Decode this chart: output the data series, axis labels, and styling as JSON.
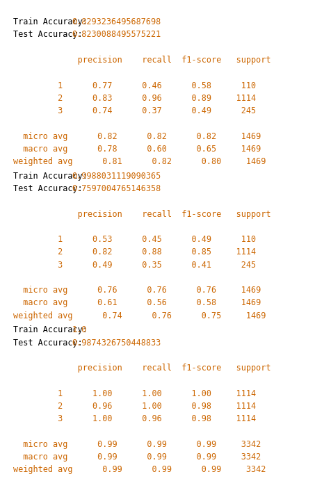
{
  "panels": [
    {
      "train_acc": "0.8293236495687698",
      "test_acc": "0.8230088495575221",
      "rows": [
        [
          "         1",
          "0.77",
          "0.46",
          "0.58",
          "110"
        ],
        [
          "         2",
          "0.83",
          "0.96",
          "0.89",
          "1114"
        ],
        [
          "         3",
          "0.74",
          "0.37",
          "0.49",
          "245"
        ]
      ],
      "avg_rows": [
        [
          "  micro avg",
          "0.82",
          "0.82",
          "0.82",
          "1469"
        ],
        [
          "  macro avg",
          "0.78",
          "0.60",
          "0.65",
          "1469"
        ],
        [
          "weighted avg",
          "0.81",
          "0.82",
          "0.80",
          "1469"
        ]
      ]
    },
    {
      "train_acc": "0.9988031119090365",
      "test_acc": "0.7597004765146358",
      "rows": [
        [
          "         1",
          "0.53",
          "0.45",
          "0.49",
          "110"
        ],
        [
          "         2",
          "0.82",
          "0.88",
          "0.85",
          "1114"
        ],
        [
          "         3",
          "0.49",
          "0.35",
          "0.41",
          "245"
        ]
      ],
      "avg_rows": [
        [
          "  micro avg",
          "0.76",
          "0.76",
          "0.76",
          "1469"
        ],
        [
          "  macro avg",
          "0.61",
          "0.56",
          "0.58",
          "1469"
        ],
        [
          "weighted avg",
          "0.74",
          "0.76",
          "0.75",
          "1469"
        ]
      ]
    },
    {
      "train_acc": "1.0",
      "test_acc": "0.9874326750448833",
      "rows": [
        [
          "         1",
          "1.00",
          "1.00",
          "1.00",
          "1114"
        ],
        [
          "         2",
          "0.96",
          "1.00",
          "0.98",
          "1114"
        ],
        [
          "         3",
          "1.00",
          "0.96",
          "0.98",
          "1114"
        ]
      ],
      "avg_rows": [
        [
          "  micro avg",
          "0.99",
          "0.99",
          "0.99",
          "3342"
        ],
        [
          "  macro avg",
          "0.99",
          "0.99",
          "0.99",
          "3342"
        ],
        [
          "weighted avg",
          "0.99",
          "0.99",
          "0.99",
          "3342"
        ]
      ]
    }
  ],
  "orange": "#cc6600",
  "black": "#000000",
  "bg_color": "#ffffff",
  "box_color": "#999999",
  "font_size": 8.5,
  "header_line": "             precision    recall  f1-score   support"
}
